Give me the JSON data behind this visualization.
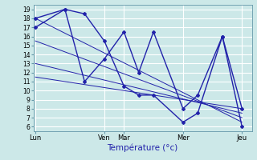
{
  "background_color": "#cce8e8",
  "grid_color": "#ffffff",
  "line_color": "#2222aa",
  "xlabel": "Température (°c)",
  "day_labels": [
    "Lun",
    "Ven",
    "Mar",
    "Mer",
    "Jeu"
  ],
  "day_positions": [
    0,
    7,
    9,
    15,
    21
  ],
  "xlim": [
    -0.2,
    22
  ],
  "ylim": [
    5.5,
    19.5
  ],
  "yticks": [
    6,
    7,
    8,
    9,
    10,
    11,
    12,
    13,
    14,
    15,
    16,
    17,
    18,
    19
  ],
  "series_main": [
    {
      "x": [
        0,
        3,
        5,
        7,
        9,
        10.5,
        12,
        15,
        16.5,
        19,
        21
      ],
      "y": [
        18,
        19,
        18.5,
        15.5,
        10.5,
        9.5,
        9.5,
        6.5,
        7.5,
        16,
        6
      ]
    },
    {
      "x": [
        0,
        3,
        5,
        7,
        9,
        10.5,
        12,
        15,
        16.5,
        19,
        21
      ],
      "y": [
        17,
        19,
        11,
        13.5,
        16.5,
        12,
        16.5,
        8,
        9.5,
        16,
        8
      ]
    }
  ],
  "series_trend": [
    {
      "x": [
        0,
        21
      ],
      "y": [
        18,
        6.5
      ]
    },
    {
      "x": [
        0,
        21
      ],
      "y": [
        15.5,
        7.0
      ]
    },
    {
      "x": [
        0,
        21
      ],
      "y": [
        13,
        7.5
      ]
    },
    {
      "x": [
        0,
        21
      ],
      "y": [
        11.5,
        8.0
      ]
    }
  ]
}
